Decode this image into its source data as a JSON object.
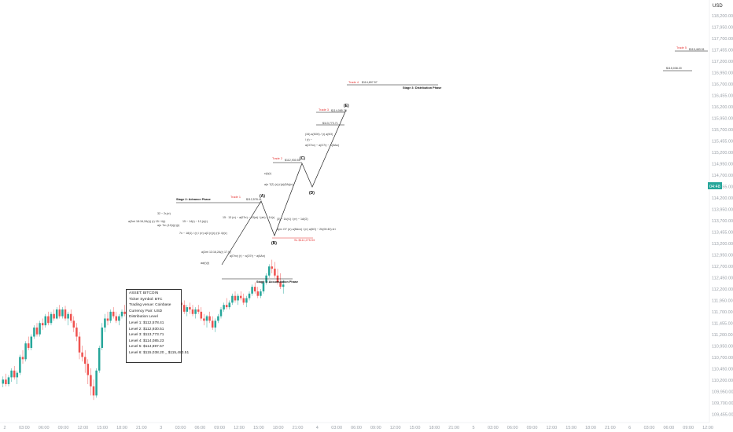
{
  "chart_data": {
    "type": "candlestick",
    "currency_label": "USD",
    "y_ticks": [
      "118,200.00",
      "117,950.00",
      "117,700.00",
      "117,455.00",
      "117,200.00",
      "116,950.00",
      "116,700.00",
      "116,455.00",
      "116,200.00",
      "115,950.00",
      "115,700.00",
      "115,455.00",
      "115,200.00",
      "114,950.00",
      "114,700.00",
      "114,455.00",
      "114,200.00",
      "113,950.00",
      "113,700.00",
      "113,455.00",
      "113,200.00",
      "112,950.00",
      "112,700.00",
      "112,450.00",
      "112,200.00",
      "111,950.00",
      "111,700.00",
      "111,455.00",
      "111,200.00",
      "110,950.00",
      "110,700.00",
      "110,450.00",
      "110,200.00",
      "109,950.00",
      "109,700.00",
      "109,455.00",
      "109,200.00"
    ],
    "x_ticks": [
      "2",
      "03:00",
      "06:00",
      "09:00",
      "12:00",
      "15:00",
      "18:00",
      "21:00",
      "3",
      "03:00",
      "06:00",
      "09:00",
      "12:00",
      "15:00",
      "18:00",
      "21:00",
      "4",
      "03:00",
      "06:00",
      "09:00",
      "12:00",
      "15:00",
      "18:00",
      "21:00",
      "5",
      "03:00",
      "06:00",
      "09:00",
      "12:00",
      "15:00",
      "18:00",
      "21:00",
      "6",
      "03:00",
      "06:00",
      "09:00",
      "12:00"
    ],
    "ylim": [
      109100,
      118300
    ],
    "current_price_label": "04:48",
    "candles": [
      [
        109960,
        110120,
        109880,
        110050
      ],
      [
        110050,
        110180,
        109900,
        109950
      ],
      [
        109950,
        110150,
        109900,
        110100
      ],
      [
        110100,
        110300,
        110000,
        110250
      ],
      [
        110250,
        110350,
        110050,
        110100
      ],
      [
        110100,
        110250,
        109950,
        110200
      ],
      [
        110200,
        110600,
        110150,
        110550
      ],
      [
        110550,
        110700,
        110400,
        110500
      ],
      [
        110500,
        110900,
        110450,
        110850
      ],
      [
        110850,
        111000,
        110700,
        110750
      ],
      [
        110750,
        111050,
        110700,
        111000
      ],
      [
        111000,
        111250,
        110950,
        111200
      ],
      [
        111200,
        111300,
        111000,
        111050
      ],
      [
        111050,
        111350,
        111000,
        111300
      ],
      [
        111300,
        111400,
        111150,
        111250
      ],
      [
        111250,
        111500,
        111200,
        111450
      ],
      [
        111450,
        111550,
        111250,
        111300
      ],
      [
        111300,
        111550,
        111250,
        111500
      ],
      [
        111500,
        111600,
        111350,
        111400
      ],
      [
        111400,
        111650,
        111380,
        111600
      ],
      [
        111600,
        111700,
        111400,
        111450
      ],
      [
        111450,
        111650,
        111400,
        111600
      ],
      [
        111600,
        111680,
        111350,
        111400
      ],
      [
        111400,
        111550,
        111250,
        111500
      ],
      [
        111500,
        111600,
        111300,
        111350
      ],
      [
        111350,
        111450,
        111100,
        111200
      ],
      [
        111200,
        111300,
        110900,
        111000
      ],
      [
        111000,
        111100,
        110500,
        110650
      ],
      [
        110650,
        110800,
        110450,
        110550
      ],
      [
        110550,
        110700,
        110200,
        110400
      ],
      [
        110400,
        110500,
        109950,
        110150
      ],
      [
        110150,
        110300,
        109700,
        109900
      ],
      [
        109900,
        110050,
        109600,
        109700
      ],
      [
        109700,
        110300,
        109650,
        110250
      ],
      [
        110250,
        110800,
        110200,
        110750
      ],
      [
        110750,
        111300,
        110700,
        111200
      ],
      [
        111200,
        111500,
        111100,
        111400
      ],
      [
        111400,
        111550,
        111250,
        111350
      ],
      [
        111350,
        111600,
        111300,
        111550
      ],
      [
        111550,
        111650,
        111400,
        111450
      ],
      [
        111450,
        111550,
        111300,
        111350
      ],
      [
        111350,
        111500,
        111250,
        111450
      ],
      [
        111450,
        111600,
        111400,
        111550
      ],
      [
        111550,
        111700,
        111450,
        111500
      ],
      [
        111500,
        111650,
        111300,
        111350
      ],
      [
        111350,
        111450,
        111200,
        111250
      ],
      [
        111250,
        111450,
        111200,
        111400
      ],
      [
        111400,
        111500,
        111250,
        111300
      ],
      [
        111300,
        111400,
        111100,
        111150
      ],
      [
        111150,
        111350,
        111100,
        111300
      ],
      [
        111300,
        111500,
        111250,
        111450
      ],
      [
        111450,
        111550,
        111300,
        111350
      ],
      [
        111350,
        111480,
        111250,
        111420
      ],
      [
        111420,
        111600,
        111380,
        111550
      ],
      [
        111550,
        111650,
        111450,
        111500
      ],
      [
        111500,
        111600,
        111350,
        111400
      ],
      [
        111400,
        111550,
        111350,
        111500
      ],
      [
        111500,
        111750,
        111450,
        111700
      ],
      [
        111700,
        111850,
        111600,
        111650
      ],
      [
        111650,
        111800,
        111550,
        111750
      ],
      [
        111750,
        111900,
        111650,
        111700
      ],
      [
        111700,
        111850,
        111600,
        111800
      ],
      [
        111800,
        111950,
        111700,
        111750
      ],
      [
        111750,
        111850,
        111650,
        111700
      ],
      [
        111700,
        111800,
        111500,
        111550
      ],
      [
        111550,
        111700,
        111450,
        111650
      ],
      [
        111650,
        111750,
        111500,
        111600
      ],
      [
        111600,
        111700,
        111450,
        111500
      ],
      [
        111500,
        111650,
        111400,
        111600
      ],
      [
        111600,
        111700,
        111500,
        111550
      ],
      [
        111550,
        111650,
        111350,
        111400
      ],
      [
        111400,
        111500,
        111250,
        111350
      ],
      [
        111350,
        111480,
        111200,
        111450
      ],
      [
        111450,
        111550,
        111300,
        111350
      ],
      [
        111350,
        111450,
        111150,
        111200
      ],
      [
        111200,
        111400,
        111100,
        111350
      ],
      [
        111350,
        111500,
        111300,
        111450
      ],
      [
        111450,
        111650,
        111400,
        111600
      ],
      [
        111600,
        111750,
        111550,
        111700
      ],
      [
        111700,
        111850,
        111600,
        111650
      ],
      [
        111650,
        111800,
        111600,
        111750
      ],
      [
        111750,
        111950,
        111700,
        111900
      ],
      [
        111900,
        112000,
        111750,
        111800
      ],
      [
        111800,
        111950,
        111700,
        111900
      ],
      [
        111900,
        112000,
        111800,
        111850
      ],
      [
        111850,
        111950,
        111700,
        111750
      ],
      [
        111750,
        111900,
        111650,
        111850
      ],
      [
        111850,
        112000,
        111800,
        111950
      ],
      [
        111950,
        112150,
        111900,
        112100
      ],
      [
        112100,
        112200,
        111950,
        112000
      ],
      [
        112000,
        112100,
        111850,
        111900
      ],
      [
        111900,
        112050,
        111850,
        112000
      ],
      [
        112000,
        112250,
        111950,
        112200
      ],
      [
        112200,
        112400,
        112150,
        112350
      ],
      [
        112350,
        112600,
        112300,
        112550
      ],
      [
        112550,
        112700,
        112400,
        112500
      ],
      [
        112500,
        112650,
        112300,
        112350
      ],
      [
        112350,
        112500,
        112150,
        112200
      ],
      [
        112200,
        112400,
        112050,
        112100
      ],
      [
        112100,
        112250,
        111950,
        112150
      ]
    ],
    "levels": [
      {
        "name": "Stage 3: Distribution Phase",
        "price": "$114,897.57",
        "price_value": 114897.57
      },
      {
        "name": "Stage 2: Advance Phase",
        "price": "$112,578.41",
        "price_value": 112578.41
      },
      {
        "name": "Stage 1: Accumulation Phase",
        "price": "",
        "price_value": 110850
      }
    ],
    "trade_labels": [
      "Trade 1",
      "Trade 2",
      "Trade 3",
      "Trade 4",
      "Trade 5"
    ],
    "price_tags": [
      "$112,578.41",
      "$112,930.51",
      "$113,773.71",
      "$114,085.23",
      "$114,897.57",
      "$115,038.20",
      "$115,483.51"
    ],
    "wave_labels": [
      "(A)",
      "(B)",
      "(C)",
      "(D)",
      "(E)"
    ],
    "stop_label": "SL $111,275.93",
    "annotation_lines": [
      "(34) a(5O0) / (r) a(5O)",
      "/ (r) ~",
      "a(O7nv) ~ a(O7r) ~ A(5Aw)",
      "(3) ~ 14(r1) / (rr) ~ 1A(O)",
      "a(nv O7 (rr) a(5Avn) / (rr) a(5O) ~ 2h(00:40) 4ri",
      "15 · 13 (rr) ~ a(07rr) ~ 13(ai) / (ah) ~ 14(r)",
      "a(2mi 18:16,2A(r)) (r) 15 / 4(r)",
      "32 ~ 2r,(rr)",
      "a(n 7rn (12(r)(r)(r)",
      "15 ~ 14(r) ~ 12,(r)(r)",
      "7n ~ 18(1) / (r) / (rr) a(3 (r)(r) (r)1 4(r)r)",
      "a(2mi 13:16,2A(r) 17,(r)",
      "a(l7nv) (r) ~ a(O7r) ~ a(6An)",
      "a(n 7(2) (r) (r)(r)(5A)(rr)",
      "c(r)(r)",
      "aa(r)(r)"
    ]
  },
  "info_box": {
    "lines": [
      "ASSET: BITCOIN",
      "Ticker Symbol: BTC",
      "Trading venue: Coinbase",
      "Currency Pair: USD",
      "Distribution Level",
      "Level 1: $112,578.41",
      "Level 2:   $112,930.51",
      "Level 3: $113,773.71",
      "Level 4: $114,085.23",
      "Level 5: $114,897.57",
      "Level 6: $115,038.20 _ $115,483.51"
    ]
  },
  "colors": {
    "up": "#26a69a",
    "down": "#ef5350",
    "price_tag": "#26a69a",
    "trade_red": "#e5302f"
  }
}
